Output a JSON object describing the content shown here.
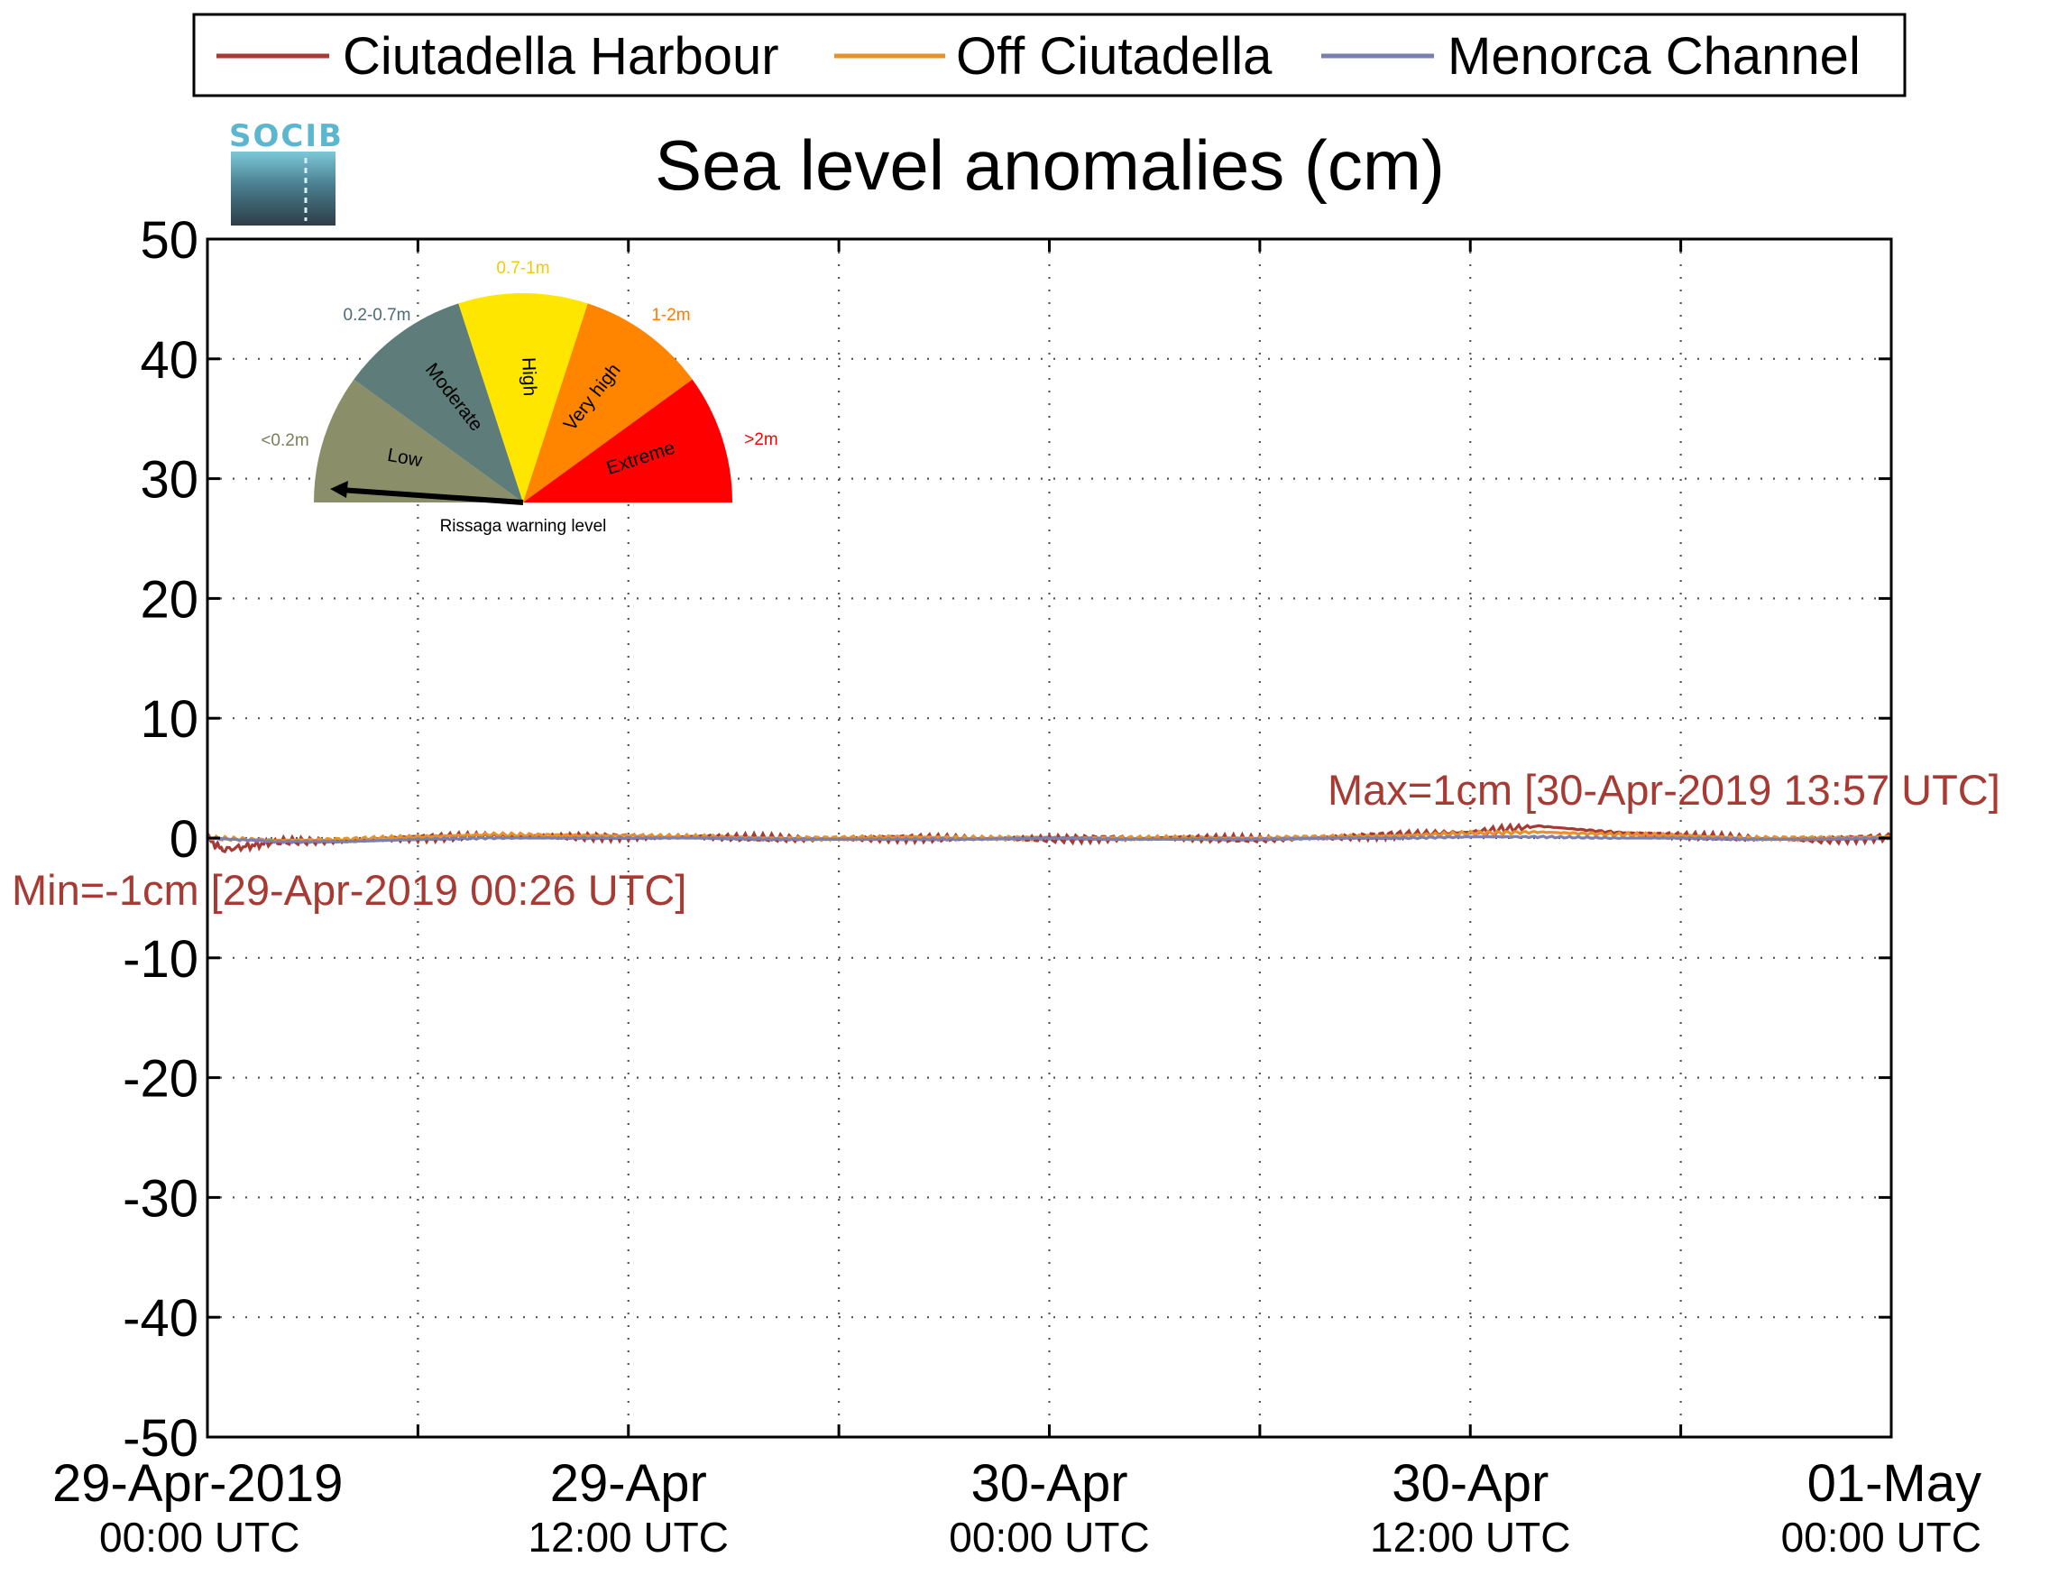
{
  "chart_data": {
    "type": "line",
    "title": "Sea level anomalies (cm)",
    "xlabel": "",
    "ylabel": "",
    "ylim": [
      -50,
      50
    ],
    "yticks": [
      50,
      40,
      30,
      20,
      10,
      0,
      -10,
      -20,
      -30,
      -40,
      -50
    ],
    "xlim": [
      "2019-04-29 00:00 UTC",
      "2019-05-01 00:00 UTC"
    ],
    "grid": true,
    "legend_position": "top",
    "x_tick_labels": [
      {
        "date": "29-Apr-2019",
        "time": "00:00 UTC"
      },
      {
        "date": "29-Apr",
        "time": "12:00 UTC"
      },
      {
        "date": "30-Apr",
        "time": "00:00 UTC"
      },
      {
        "date": "30-Apr",
        "time": "12:00 UTC"
      },
      {
        "date": "01-May",
        "time": "00:00 UTC"
      }
    ],
    "series": [
      {
        "name": "Ciutadella Harbour",
        "color": "#a83a34",
        "x_hours": [
          0,
          0.43,
          2,
          4,
          6,
          8,
          10,
          12,
          14,
          16,
          18,
          20,
          22,
          24,
          26,
          28,
          30,
          32,
          34,
          36,
          37.95,
          40,
          42,
          44,
          46,
          48
        ],
        "values": [
          0,
          -1,
          -0.3,
          -0.2,
          0,
          0.2,
          0.1,
          0.1,
          0.1,
          0,
          -0.1,
          0,
          0,
          -0.1,
          0,
          0,
          -0.1,
          0,
          0.3,
          0.5,
          1,
          0.5,
          0.2,
          0,
          -0.2,
          0.1
        ]
      },
      {
        "name": "Off Ciutadella",
        "color": "#e8902a",
        "x_hours": [
          0,
          2,
          4,
          6,
          8,
          10,
          12,
          14,
          16,
          18,
          20,
          22,
          24,
          26,
          28,
          30,
          32,
          34,
          36,
          38,
          40,
          42,
          44,
          46,
          48
        ],
        "values": [
          0,
          -0.2,
          -0.1,
          0.1,
          0.3,
          0.2,
          0.2,
          0.1,
          0,
          0,
          0.1,
          0,
          0,
          0,
          0,
          0,
          0.1,
          0.2,
          0.4,
          0.5,
          0.3,
          0.2,
          0,
          0,
          0.1
        ]
      },
      {
        "name": "Menorca Channel",
        "color": "#7a7fb2",
        "x_hours": [
          0,
          2,
          4,
          6,
          8,
          10,
          12,
          14,
          16,
          18,
          20,
          22,
          24,
          26,
          28,
          30,
          32,
          34,
          36,
          38,
          40,
          42,
          44,
          46,
          48
        ],
        "values": [
          0,
          -0.3,
          -0.3,
          -0.1,
          0,
          0,
          0,
          0,
          -0.1,
          -0.1,
          -0.1,
          -0.1,
          0,
          -0.1,
          -0.1,
          -0.1,
          0,
          0,
          0.1,
          0.1,
          0,
          0,
          -0.1,
          -0.1,
          0
        ]
      }
    ],
    "annotations": [
      {
        "text": "Max=1cm [30-Apr-2019 13:57 UTC]",
        "color": "#a83a34"
      },
      {
        "text": "Min=-1cm [29-Apr-2019 00:26 UTC]",
        "color": "#a83a34"
      }
    ]
  },
  "logo": {
    "text": "SOCIB"
  },
  "gauge": {
    "caption": "Rissaga warning level",
    "needle_level": "Low",
    "segments": [
      {
        "label": "Low",
        "range": "<0.2m",
        "color": "#8a8f6a",
        "range_color": "#7a7f5a"
      },
      {
        "label": "Moderate",
        "range": "0.2-0.7m",
        "color": "#5e7c79",
        "range_color": "#4e6c72"
      },
      {
        "label": "High",
        "range": "0.7-1m",
        "color": "#ffe600",
        "range_color": "#f0cc00"
      },
      {
        "label": "Very high",
        "range": "1-2m",
        "color": "#ff8400",
        "range_color": "#ff7a00"
      },
      {
        "label": "Extreme",
        "range": ">2m",
        "color": "#ff0000",
        "range_color": "#ff0000"
      }
    ]
  }
}
